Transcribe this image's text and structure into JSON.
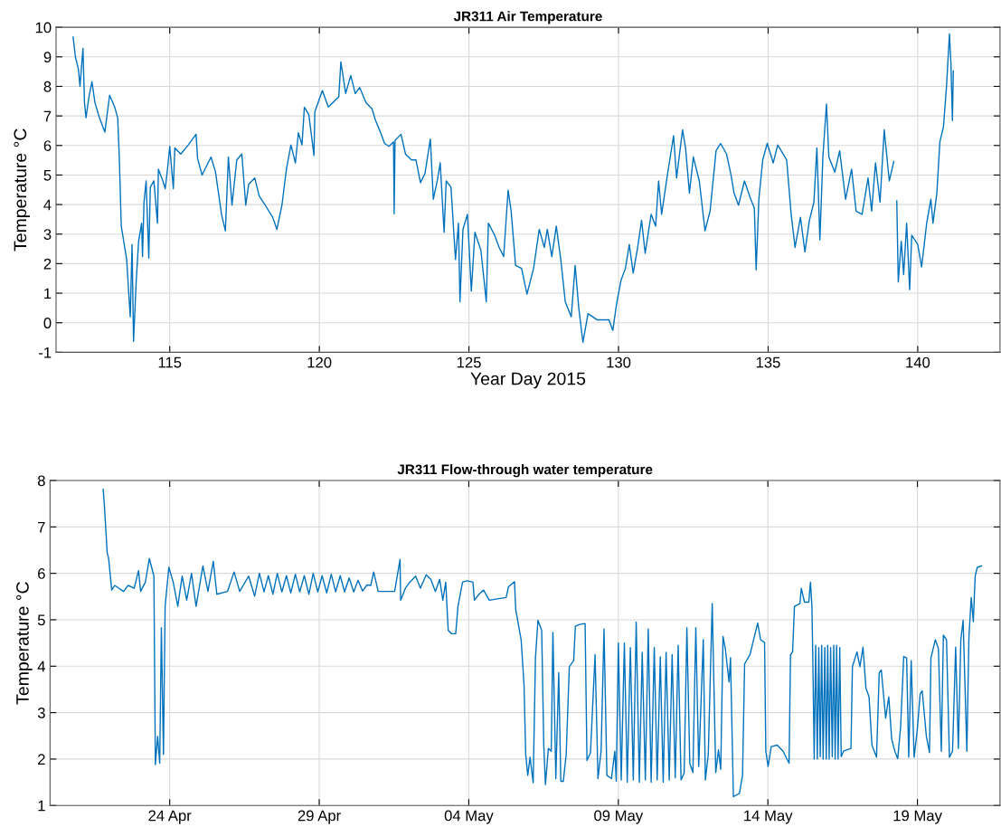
{
  "chart_data": [
    {
      "type": "line",
      "title": "JR311 Air Temperature",
      "xlabel": "Year Day 2015",
      "ylabel": "Temperature °C",
      "grid": true,
      "xlim": [
        111.2,
        142.75
      ],
      "xticks": [
        115,
        120,
        125,
        130,
        135,
        140
      ],
      "ylim": [
        -1,
        10
      ],
      "yticks": [
        -1,
        0,
        1,
        2,
        3,
        4,
        5,
        6,
        7,
        8,
        9,
        10
      ],
      "x": [
        111.77,
        111.85,
        111.95,
        112.0,
        112.1,
        112.15,
        112.2,
        112.3,
        112.4,
        112.5,
        112.65,
        112.83,
        112.99,
        113.16,
        113.26,
        113.31,
        113.38,
        113.56,
        113.68,
        113.74,
        113.79,
        113.88,
        113.96,
        114.06,
        114.09,
        114.14,
        114.21,
        114.3,
        114.35,
        114.47,
        114.59,
        114.62,
        114.77,
        114.85,
        114.92,
        115.0,
        115.12,
        115.17,
        115.37,
        115.62,
        115.88,
        115.93,
        116.08,
        116.38,
        116.53,
        116.73,
        116.86,
        116.96,
        117.08,
        117.24,
        117.41,
        117.54,
        117.64,
        117.84,
        117.99,
        118.19,
        118.44,
        118.58,
        118.75,
        118.9,
        119.05,
        119.2,
        119.3,
        119.42,
        119.5,
        119.65,
        119.82,
        119.85,
        120.1,
        120.3,
        120.55,
        120.65,
        120.72,
        120.88,
        121.05,
        121.2,
        121.35,
        121.56,
        121.76,
        121.88,
        122.03,
        122.18,
        122.33,
        122.48,
        122.5,
        122.53,
        122.73,
        122.88,
        123.08,
        123.23,
        123.38,
        123.53,
        123.71,
        123.81,
        123.94,
        124.04,
        124.17,
        124.24,
        124.4,
        124.55,
        124.65,
        124.7,
        124.8,
        124.95,
        125.08,
        125.2,
        125.4,
        125.58,
        125.65,
        125.86,
        126.01,
        126.16,
        126.31,
        126.41,
        126.56,
        126.76,
        126.94,
        127.16,
        127.35,
        127.52,
        127.62,
        127.77,
        127.92,
        128.07,
        128.22,
        128.42,
        128.55,
        128.67,
        128.81,
        128.98,
        129.28,
        129.53,
        129.68,
        129.81,
        129.93,
        130.08,
        130.23,
        130.36,
        130.49,
        130.64,
        130.77,
        130.89,
        131.09,
        131.24,
        131.34,
        131.44,
        131.64,
        131.84,
        131.94,
        132.14,
        132.24,
        132.37,
        132.5,
        132.7,
        132.89,
        133.06,
        133.26,
        133.41,
        133.61,
        133.76,
        133.86,
        134.01,
        134.21,
        134.42,
        134.54,
        134.6,
        134.69,
        134.82,
        134.97,
        135.17,
        135.32,
        135.62,
        135.77,
        135.9,
        136.08,
        136.23,
        136.38,
        136.53,
        136.63,
        136.73,
        136.83,
        136.95,
        137.03,
        137.23,
        137.39,
        137.59,
        137.79,
        137.94,
        138.14,
        138.34,
        138.46,
        138.59,
        138.74,
        138.88,
        139.05,
        139.2,
        139.25,
        139.3,
        139.35,
        139.45,
        139.53,
        139.63,
        139.73,
        139.8,
        140.0,
        140.13,
        140.3,
        140.44,
        140.51,
        140.64,
        140.74,
        140.86,
        140.96,
        141.06,
        141.11,
        141.16,
        141.19
      ],
      "series": [
        {
          "color": "#0072bd",
          "values": [
            9.67,
            8.98,
            8.57,
            8.0,
            9.29,
            7.45,
            6.94,
            7.65,
            8.16,
            7.45,
            6.94,
            6.45,
            7.7,
            7.3,
            6.94,
            5.71,
            3.27,
            2.14,
            0.2,
            2.65,
            -0.63,
            1.43,
            2.76,
            3.37,
            2.24,
            4.08,
            4.8,
            2.19,
            4.59,
            4.8,
            3.37,
            5.2,
            4.8,
            4.54,
            5.15,
            5.97,
            4.54,
            5.92,
            5.71,
            6.02,
            6.38,
            5.56,
            5.0,
            5.61,
            5.1,
            3.67,
            3.11,
            5.61,
            3.98,
            5.51,
            5.71,
            3.98,
            4.69,
            4.9,
            4.29,
            3.98,
            3.57,
            3.16,
            3.98,
            5.2,
            6.02,
            5.41,
            6.43,
            6.02,
            7.3,
            7.04,
            5.66,
            7.14,
            7.86,
            7.3,
            7.55,
            7.65,
            8.83,
            7.76,
            8.37,
            7.76,
            7.96,
            7.45,
            7.24,
            6.84,
            6.48,
            6.07,
            5.97,
            6.12,
            3.69,
            6.17,
            6.38,
            5.71,
            5.51,
            5.51,
            4.74,
            5.05,
            6.22,
            4.18,
            4.8,
            5.41,
            3.06,
            4.8,
            4.59,
            2.14,
            3.37,
            0.71,
            3.16,
            3.67,
            1.07,
            3.06,
            2.45,
            0.71,
            3.37,
            2.96,
            2.55,
            2.24,
            4.49,
            3.78,
            1.94,
            1.84,
            0.97,
            1.84,
            3.16,
            2.55,
            3.16,
            2.24,
            3.27,
            2.14,
            0.71,
            0.2,
            1.94,
            0.51,
            -0.66,
            0.31,
            0.1,
            0.1,
            0.1,
            -0.26,
            0.61,
            1.43,
            1.84,
            2.65,
            1.68,
            2.55,
            3.47,
            2.35,
            3.67,
            3.27,
            4.8,
            3.67,
            5.05,
            6.33,
            4.9,
            6.53,
            5.92,
            4.39,
            5.61,
            4.8,
            3.11,
            3.78,
            5.82,
            6.07,
            5.71,
            5.0,
            4.39,
            3.98,
            4.8,
            4.18,
            3.88,
            1.79,
            4.18,
            5.51,
            6.07,
            5.41,
            6.02,
            5.51,
            3.67,
            2.55,
            3.57,
            2.4,
            3.47,
            4.08,
            5.92,
            2.81,
            5.61,
            7.4,
            5.61,
            5.1,
            5.82,
            4.18,
            5.2,
            3.78,
            3.67,
            4.9,
            3.78,
            5.41,
            4.08,
            6.53,
            4.8,
            5.46,
            null,
            4.13,
            1.38,
            2.76,
            1.63,
            3.37,
            1.12,
            2.96,
            2.65,
            1.89,
            3.37,
            4.18,
            3.37,
            4.39,
            6.12,
            6.63,
            7.96,
            9.78,
            8.78,
            6.84,
            8.52
          ]
        }
      ]
    },
    {
      "type": "line",
      "title": "JR311 Flow-through water temperature",
      "ylabel": "Temperature °C",
      "grid": true,
      "xlim": [
        "2015-04-20T00:00",
        "2015-05-21T18:15"
      ],
      "xticks": [
        {
          "value": "2015-04-24",
          "label": "24 Apr"
        },
        {
          "value": "2015-04-29",
          "label": "29 Apr"
        },
        {
          "value": "2015-05-04",
          "label": "04 May"
        },
        {
          "value": "2015-05-09",
          "label": "09 May"
        },
        {
          "value": "2015-05-14",
          "label": "14 May"
        },
        {
          "value": "2015-05-19",
          "label": "19 May"
        }
      ],
      "ylim": [
        1,
        8
      ],
      "yticks": [
        1,
        2,
        3,
        4,
        5,
        6,
        7,
        8
      ],
      "x": [
        "2015-04-21T18:40",
        "2015-04-21T19:40",
        "2015-04-21T21:50",
        "2015-04-21T23:00",
        "2015-04-22T01:30",
        "2015-04-22T03:50",
        "2015-04-22T11:00",
        "2015-04-22T14:40",
        "2015-04-22T19:30",
        "2015-04-22T23:00",
        "2015-04-23T00:40",
        "2015-04-23T04:30",
        "2015-04-23T07:40",
        "2015-04-23T11:20",
        "2015-04-23T12:30",
        "2015-04-23T14:20",
        "2015-04-23T16:00",
        "2015-04-23T17:20",
        "2015-04-23T19:00",
        "2015-04-23T20:20",
        "2015-04-23T23:20",
        "2015-04-24T02:50",
        "2015-04-24T06:30",
        "2015-04-24T10:00",
        "2015-04-24T13:40",
        "2015-04-24T17:30",
        "2015-04-24T21:10",
        "2015-04-25T02:40",
        "2015-04-25T06:40",
        "2015-04-25T11:00",
        "2015-04-25T13:50",
        "2015-04-25T22:20",
        "2015-04-26T03:40",
        "2015-04-26T08:10",
        "2015-04-26T15:20",
        "2015-04-26T20:10",
        "2015-04-27T00:00",
        "2015-04-27T03:40",
        "2015-04-27T07:10",
        "2015-04-27T10:50",
        "2015-04-27T14:20",
        "2015-04-27T18:00",
        "2015-04-27T21:40",
        "2015-04-28T01:10",
        "2015-04-28T04:50",
        "2015-04-28T08:20",
        "2015-04-28T12:00",
        "2015-04-28T15:40",
        "2015-04-28T19:10",
        "2015-04-28T22:50",
        "2015-04-29T02:20",
        "2015-04-29T06:00",
        "2015-04-29T09:40",
        "2015-04-29T13:10",
        "2015-04-29T16:50",
        "2015-04-29T20:20",
        "2015-04-30T00:00",
        "2015-04-30T03:40",
        "2015-04-30T07:10",
        "2015-04-30T10:50",
        "2015-04-30T14:20",
        "2015-04-30T17:20",
        "2015-04-30T19:40",
        "2015-04-30T23:20",
        "2015-05-01T12:30",
        "2015-05-01T16:50",
        "2015-05-01T17:20",
        "2015-05-01T21:10",
        "2015-05-02T00:40",
        "2015-05-02T05:20",
        "2015-05-02T09:10",
        "2015-05-02T13:50",
        "2015-05-02T17:30",
        "2015-05-02T21:10",
        "2015-05-03T00:40",
        "2015-05-03T03:10",
        "2015-05-03T05:30",
        "2015-05-03T07:30",
        "2015-05-03T10:20",
        "2015-05-03T13:30",
        "2015-05-03T15:20",
        "2015-05-03T19:00",
        "2015-05-03T22:30",
        "2015-05-04T03:20",
        "2015-05-04T04:30",
        "2015-05-04T08:10",
        "2015-05-04T11:50",
        "2015-05-04T16:30",
        "2015-05-04T22:50",
        "2015-05-05T06:00",
        "2015-05-05T07:50",
        "2015-05-05T12:40",
        "2015-05-05T13:40",
        "2015-05-05T18:00",
        "2015-05-05T20:20",
        "2015-05-05T21:40",
        "2015-05-05T23:20",
        "2015-05-06T01:10",
        "2015-05-06T03:40",
        "2015-05-06T05:30",
        "2015-05-06T07:30",
        "2015-05-06T10:30",
        "2015-05-06T12:10",
        "2015-05-06T13:30",
        "2015-05-06T15:50",
        "2015-05-06T18:10",
        "2015-05-06T19:30",
        "2015-05-06T21:50",
        "2015-05-07T00:10",
        "2015-05-07T01:50",
        "2015-05-07T03:50",
        "2015-05-07T06:10",
        "2015-05-07T08:40",
        "2015-05-07T12:10",
        "2015-05-07T13:30",
        "2015-05-07T17:00",
        "2015-05-07T21:20",
        "2015-05-07T22:50",
        "2015-05-08T01:40",
        "2015-05-08T05:20",
        "2015-05-08T07:40",
        "2015-05-08T10:10",
        "2015-05-08T12:30",
        "2015-05-08T14:50",
        "2015-05-08T18:30",
        "2015-05-08T21:10",
        "2015-05-08T22:20",
        "2015-05-09T00:00",
        "2015-05-09T02:20",
        "2015-05-09T04:50",
        "2015-05-09T07:10",
        "2015-05-09T09:40",
        "2015-05-09T12:00",
        "2015-05-09T14:20",
        "2015-05-09T16:50",
        "2015-05-09T19:10",
        "2015-05-09T21:40",
        "2015-05-10T00:00",
        "2015-05-10T02:20",
        "2015-05-10T04:50",
        "2015-05-10T07:10",
        "2015-05-10T09:40",
        "2015-05-10T12:00",
        "2015-05-10T14:20",
        "2015-05-10T16:50",
        "2015-05-10T19:10",
        "2015-05-10T21:40",
        "2015-05-11T00:00",
        "2015-05-11T02:20",
        "2015-05-11T04:50",
        "2015-05-11T07:00",
        "2015-05-11T09:20",
        "2015-05-11T11:50",
        "2015-05-11T14:10",
        "2015-05-11T16:30",
        "2015-05-11T20:10",
        "2015-05-11T21:50",
        "2015-05-12T00:10",
        "2015-05-12T03:20",
        "2015-05-12T06:10",
        "2015-05-12T08:20",
        "2015-05-12T10:10",
        "2015-05-12T12:00",
        "2015-05-12T13:50",
        "2015-05-12T16:50",
        "2015-05-12T18:00",
        "2015-05-12T20:20",
        "2015-05-13T01:10",
        "2015-05-13T03:40",
        "2015-05-13T05:20",
        "2015-05-13T09:40",
        "2015-05-13T13:10",
        "2015-05-13T15:50",
        "2015-05-13T18:10",
        "2015-05-13T21:20",
        "2015-05-13T22:20",
        "2015-05-14T00:10",
        "2015-05-14T02:40",
        "2015-05-14T07:30",
        "2015-05-14T12:10",
        "2015-05-14T17:00",
        "2015-05-14T18:10",
        "2015-05-14T19:50",
        "2015-05-14T21:20",
        "2015-05-15T01:40",
        "2015-05-15T02:50",
        "2015-05-15T05:20",
        "2015-05-15T08:50",
        "2015-05-15T10:10",
        "2015-05-15T11:20",
        "2015-05-15T12:00",
        "2015-05-15T13:10",
        "2015-05-15T14:20",
        "2015-05-15T15:40",
        "2015-05-15T16:50",
        "2015-05-15T18:00",
        "2015-05-15T19:10",
        "2015-05-15T20:20",
        "2015-05-15T21:40",
        "2015-05-15T22:50",
        "2015-05-16T00:00",
        "2015-05-16T01:10",
        "2015-05-16T02:20",
        "2015-05-16T03:40",
        "2015-05-16T04:50",
        "2015-05-16T06:00",
        "2015-05-16T07:10",
        "2015-05-16T08:20",
        "2015-05-16T09:40",
        "2015-05-16T10:50",
        "2015-05-16T12:40",
        "2015-05-16T18:40",
        "2015-05-16T19:50",
        "2015-05-16T23:30",
        "2015-05-17T01:50",
        "2015-05-17T04:20",
        "2015-05-17T06:40",
        "2015-05-17T09:10",
        "2015-05-17T11:30",
        "2015-05-17T15:10",
        "2015-05-17T17:20",
        "2015-05-17T19:00",
        "2015-05-17T22:30",
        "2015-05-18T01:00",
        "2015-05-18T03:20",
        "2015-05-18T05:50",
        "2015-05-18T08:10",
        "2015-05-18T10:30",
        "2015-05-18T13:00",
        "2015-05-18T15:20",
        "2015-05-18T17:00",
        "2015-05-18T19:00",
        "2015-05-18T21:20",
        "2015-05-18T23:50",
        "2015-05-19T02:10",
        "2015-05-19T03:50",
        "2015-05-19T07:10",
        "2015-05-19T09:40",
        "2015-05-19T10:50",
        "2015-05-19T14:20",
        "2015-05-19T16:50",
        "2015-05-19T19:10",
        "2015-05-19T20:50",
        "2015-05-19T23:20",
        "2015-05-20T01:40",
        "2015-05-20T04:10",
        "2015-05-20T06:40",
        "2015-05-20T08:50",
        "2015-05-20T10:50",
        "2015-05-20T12:40",
        "2015-05-20T15:40",
        "2015-05-20T17:20",
        "2015-05-20T19:10",
        "2015-05-20T20:50",
        "2015-05-20T22:20",
        "2015-05-21T00:00",
        "2015-05-21T03:20"
      ],
      "series": [
        {
          "color": "#0072bd",
          "values": [
            7.81,
            7.43,
            6.45,
            6.32,
            5.64,
            5.74,
            5.61,
            5.74,
            5.68,
            6.06,
            5.61,
            5.81,
            6.32,
            5.94,
            1.88,
            2.49,
            1.91,
            4.83,
            2.1,
            5.29,
            6.13,
            5.81,
            5.29,
            5.94,
            5.42,
            6.0,
            5.29,
            6.16,
            5.61,
            6.26,
            5.55,
            5.61,
            6.03,
            5.61,
            5.94,
            5.51,
            6.0,
            5.6,
            5.95,
            5.55,
            6.0,
            5.6,
            5.95,
            5.58,
            5.98,
            5.6,
            5.95,
            5.55,
            6.0,
            5.6,
            5.95,
            5.58,
            5.98,
            5.6,
            5.95,
            5.6,
            5.9,
            5.6,
            5.85,
            5.62,
            5.75,
            5.74,
            6.03,
            5.61,
            5.61,
            6.3,
            5.42,
            5.68,
            5.81,
            5.94,
            5.68,
            5.97,
            5.87,
            5.61,
            5.87,
            5.42,
            5.81,
            4.77,
            4.7,
            4.7,
            5.29,
            5.81,
            5.84,
            5.81,
            5.42,
            5.55,
            5.64,
            5.42,
            5.45,
            5.48,
            5.71,
            5.82,
            5.22,
            4.57,
            3.6,
            2.1,
            1.65,
            2.04,
            1.49,
            4.18,
            4.99,
            4.77,
            2.3,
            1.45,
            2.23,
            2.17,
            4.73,
            1.58,
            3.86,
            1.52,
            1.52,
            2.1,
            3.99,
            4.12,
            4.86,
            4.9,
            4.92,
            1.97,
            2.14,
            4.25,
            1.58,
            2.17,
            4.8,
            1.65,
            1.58,
            2.17,
            1.52,
            4.5,
            1.55,
            4.5,
            1.5,
            4.4,
            1.55,
            4.95,
            1.5,
            4.3,
            1.55,
            4.8,
            1.5,
            4.4,
            1.55,
            4.2,
            1.5,
            4.3,
            1.55,
            4.25,
            1.6,
            4.45,
            1.55,
            1.7,
            4.83,
            1.91,
            1.71,
            4.83,
            1.84,
            4.57,
            1.55,
            2.1,
            5.35,
            1.71,
            2.2,
            1.78,
            4.64,
            4.38,
            3.66,
            4.18,
            1.19,
            1.26,
            1.65,
            4.05,
            4.25,
            4.64,
            4.93,
            4.57,
            4.51,
            2.17,
            1.84,
            2.27,
            2.3,
            2.17,
            1.91,
            4.25,
            4.31,
            5.29,
            5.35,
            5.68,
            5.38,
            5.38,
            5.81,
            5.29,
            4.25,
            2.0,
            4.45,
            2.0,
            4.4,
            2.05,
            4.45,
            2.0,
            4.4,
            2.0,
            4.45,
            2.0,
            4.4,
            2.05,
            4.45,
            2.0,
            4.45,
            2.0,
            4.4,
            2.05,
            2.17,
            2.23,
            3.99,
            4.31,
            3.99,
            4.41,
            3.53,
            3.34,
            2.3,
            2.04,
            3.86,
            3.92,
            2.88,
            3.34,
            2.43,
            2.17,
            2.01,
            2.69,
            4.21,
            4.18,
            2.04,
            4.12,
            2.04,
            2.62,
            3.4,
            3.47,
            2.49,
            2.14,
            4.18,
            4.57,
            4.38,
            2.17,
            4.67,
            4.57,
            2.04,
            2.17,
            4.41,
            2.23,
            4.57,
            4.99,
            2.17,
            4.64,
            5.48,
            4.96,
            5.94,
            6.13,
            6.16
          ]
        }
      ]
    }
  ]
}
